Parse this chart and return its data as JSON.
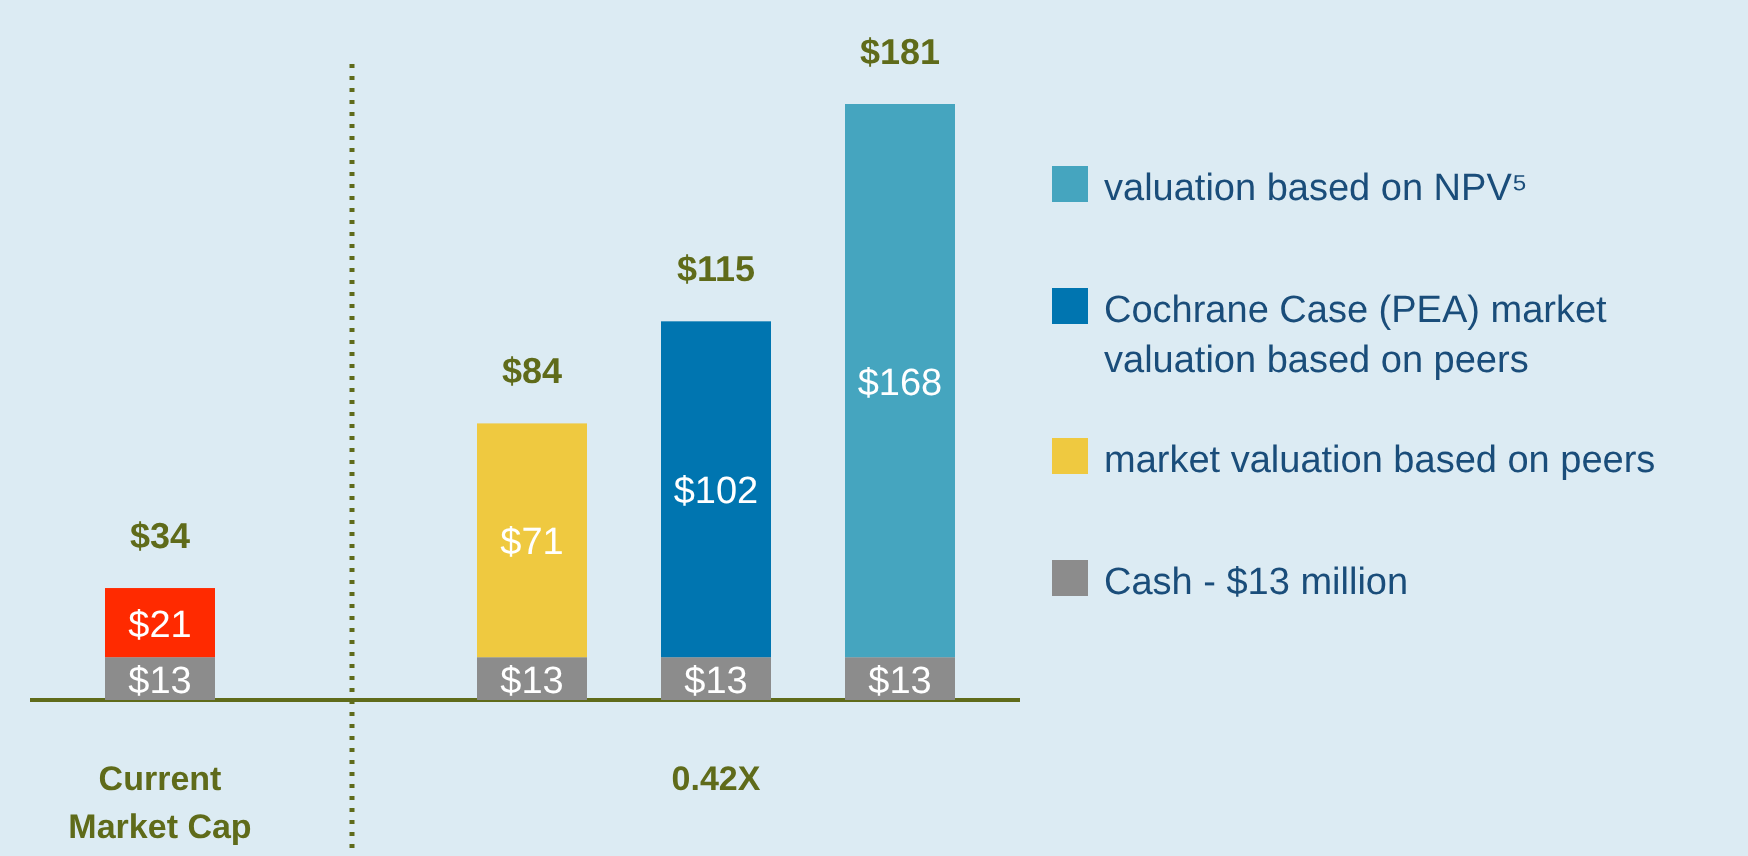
{
  "chart_data": {
    "type": "bar",
    "stacked": true,
    "categories": [
      "Current Market Cap",
      null,
      "0.42X",
      null
    ],
    "series": [
      {
        "name": "Cash - $13 million",
        "color": "#8c8c8c",
        "values": [
          13,
          13,
          13,
          13
        ],
        "value_labels": [
          "$13",
          "$13",
          "$13",
          "$13"
        ]
      },
      {
        "color": "#ff2a00",
        "values": [
          21,
          null,
          null,
          null
        ],
        "value_labels": [
          "$21",
          null,
          null,
          null
        ]
      },
      {
        "name": "market valuation based on peers",
        "color": "#efc940",
        "values": [
          null,
          71,
          null,
          null
        ],
        "value_labels": [
          null,
          "$71",
          null,
          null
        ]
      },
      {
        "name": "Cochrane Case (PEA) market valuation based on peers",
        "color": "#0075b0",
        "values": [
          null,
          null,
          102,
          null
        ],
        "value_labels": [
          null,
          null,
          "$102",
          null
        ]
      },
      {
        "name": "valuation based on NPV⁵",
        "color": "#45a5bf",
        "values": [
          null,
          null,
          null,
          168
        ],
        "value_labels": [
          null,
          null,
          null,
          "$168"
        ]
      }
    ],
    "totals": [
      "$34",
      "$84",
      "$115",
      "$181"
    ],
    "legend": "right"
  }
}
